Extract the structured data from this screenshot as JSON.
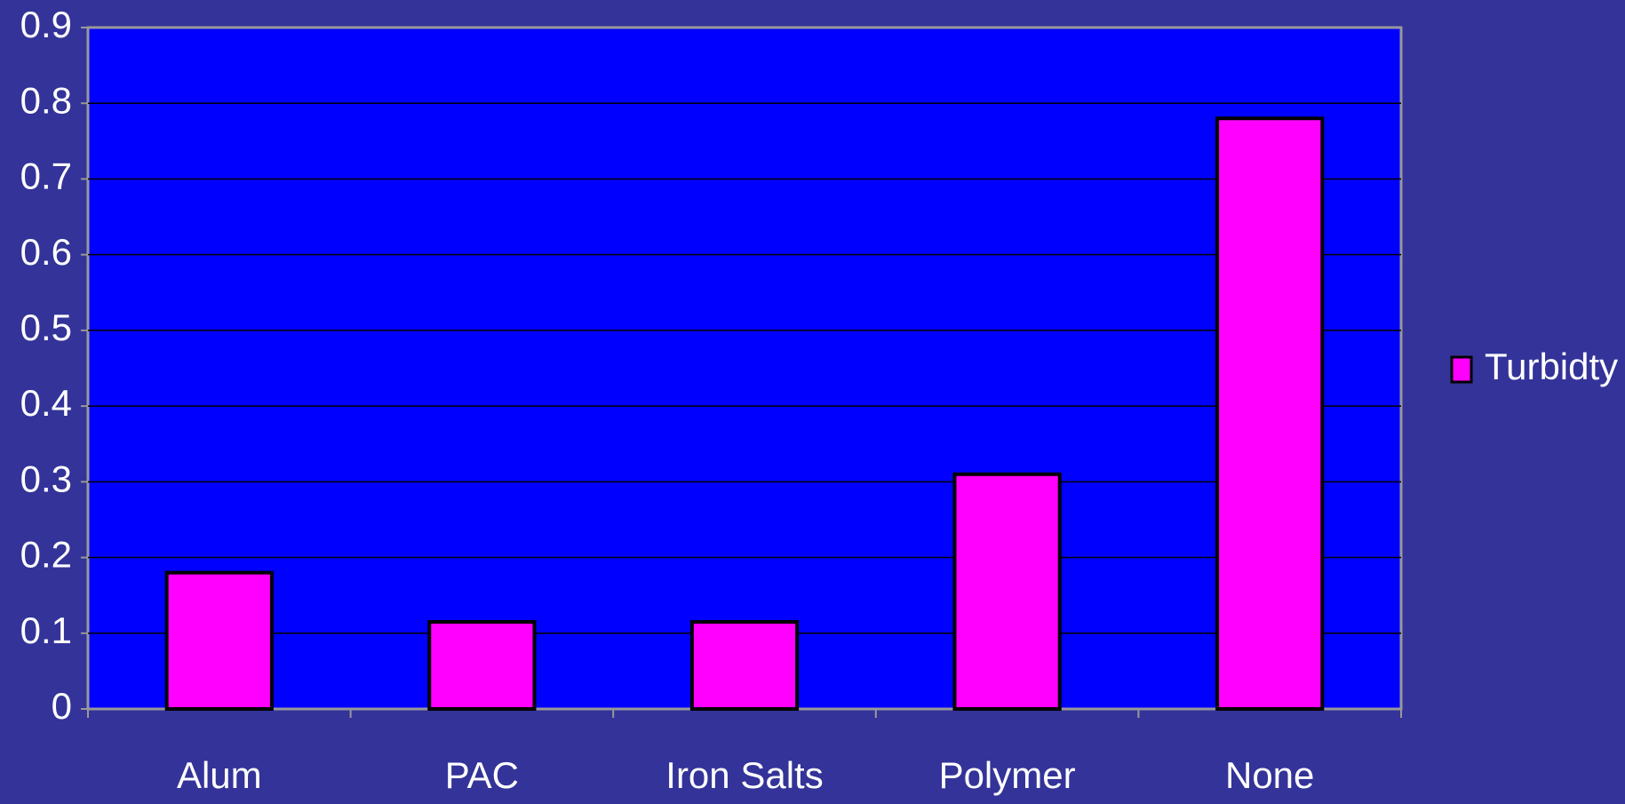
{
  "chart_data": {
    "type": "bar",
    "categories": [
      "Alum",
      "PAC",
      "Iron Salts",
      "Polymer",
      "None"
    ],
    "series": [
      {
        "name": "Turbidty",
        "color": "#ff00ff",
        "values": [
          0.18,
          0.115,
          0.115,
          0.31,
          0.78
        ]
      }
    ],
    "ylim": [
      0,
      0.9
    ],
    "yticks": [
      0,
      0.1,
      0.2,
      0.3,
      0.4,
      0.5,
      0.6,
      0.7,
      0.8,
      0.9
    ],
    "grid": true,
    "legend": "right"
  }
}
